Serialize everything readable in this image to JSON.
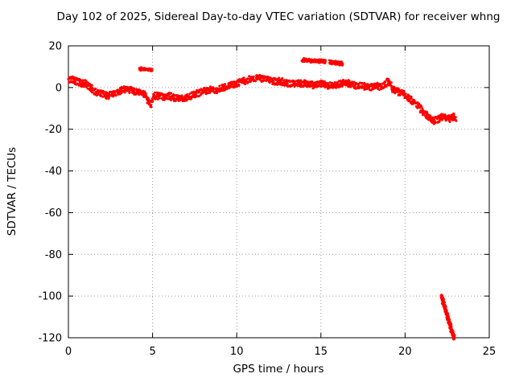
{
  "chart_data": {
    "type": "scatter",
    "title": "Day 102 of 2025, Sidereal Day-to-day VTEC variation (SDTVAR) for receiver whng",
    "xlabel": "GPS time / hours",
    "ylabel": "SDTVAR / TECUs",
    "xlim": [
      0,
      25
    ],
    "ylim": [
      -120,
      20
    ],
    "xticks": [
      0,
      5,
      10,
      15,
      20,
      25
    ],
    "yticks": [
      20,
      0,
      -20,
      -40,
      -60,
      -80,
      -100,
      -120
    ],
    "grid": true,
    "legend": "none",
    "point_color": "#ff0000",
    "axis_color": "#000000",
    "grid_color": "#9a9a9a",
    "series": [
      {
        "name": "main-band",
        "spread": 1.6,
        "x": [
          0.0,
          0.2,
          0.5,
          0.8,
          1.0,
          1.3,
          1.6,
          2.0,
          2.3,
          2.6,
          3.0,
          3.3,
          3.6,
          3.9,
          4.2,
          4.5,
          4.7,
          4.9,
          5.1,
          5.4,
          5.7,
          6.0,
          6.3,
          6.6,
          7.0,
          7.3,
          7.6,
          8.0,
          8.4,
          8.8,
          9.2,
          9.6,
          10.0,
          10.4,
          10.8,
          11.2,
          11.5,
          11.8,
          12.2,
          12.6,
          13.0,
          13.4,
          13.8,
          14.2,
          14.6,
          15.0,
          15.4,
          15.8,
          16.2,
          16.6,
          17.0,
          17.4,
          17.8,
          18.2,
          18.6,
          19.0,
          19.3,
          19.6,
          19.9,
          20.2,
          20.5,
          20.8,
          21.1,
          21.4,
          21.7,
          22.0,
          22.3,
          22.6,
          22.9,
          23.0
        ],
        "y": [
          3,
          4,
          3,
          2,
          2,
          0,
          -2,
          -3,
          -4,
          -3,
          -2,
          -1,
          -1,
          -2,
          -2,
          -3,
          -6,
          -8,
          -4,
          -4,
          -5,
          -4,
          -5,
          -5,
          -5,
          -4,
          -3,
          -2,
          -1,
          -1,
          0,
          1,
          2,
          3,
          4,
          5,
          4,
          4,
          3,
          3,
          2,
          2,
          2,
          2,
          1,
          2,
          1,
          1,
          2,
          2,
          1,
          1,
          0,
          1,
          0,
          3,
          -1,
          -2,
          -3,
          -5,
          -7,
          -9,
          -12,
          -14,
          -16,
          -15,
          -14,
          -15,
          -14,
          -15
        ]
      },
      {
        "name": "upper-offset-early",
        "spread": 0.8,
        "x": [
          4.2,
          5.0
        ],
        "y": [
          9,
          8.3
        ]
      },
      {
        "name": "upper-offset-mid-1",
        "spread": 0.9,
        "x": [
          13.9,
          15.3
        ],
        "y": [
          13.2,
          12.4
        ]
      },
      {
        "name": "upper-offset-mid-2",
        "spread": 0.9,
        "x": [
          15.5,
          16.3
        ],
        "y": [
          12.2,
          11.4
        ]
      },
      {
        "name": "steep-drop",
        "spread": 0.7,
        "r": 2.2,
        "step": 0.02,
        "x": [
          22.15,
          22.9
        ],
        "y": [
          -100,
          -120
        ]
      }
    ]
  }
}
